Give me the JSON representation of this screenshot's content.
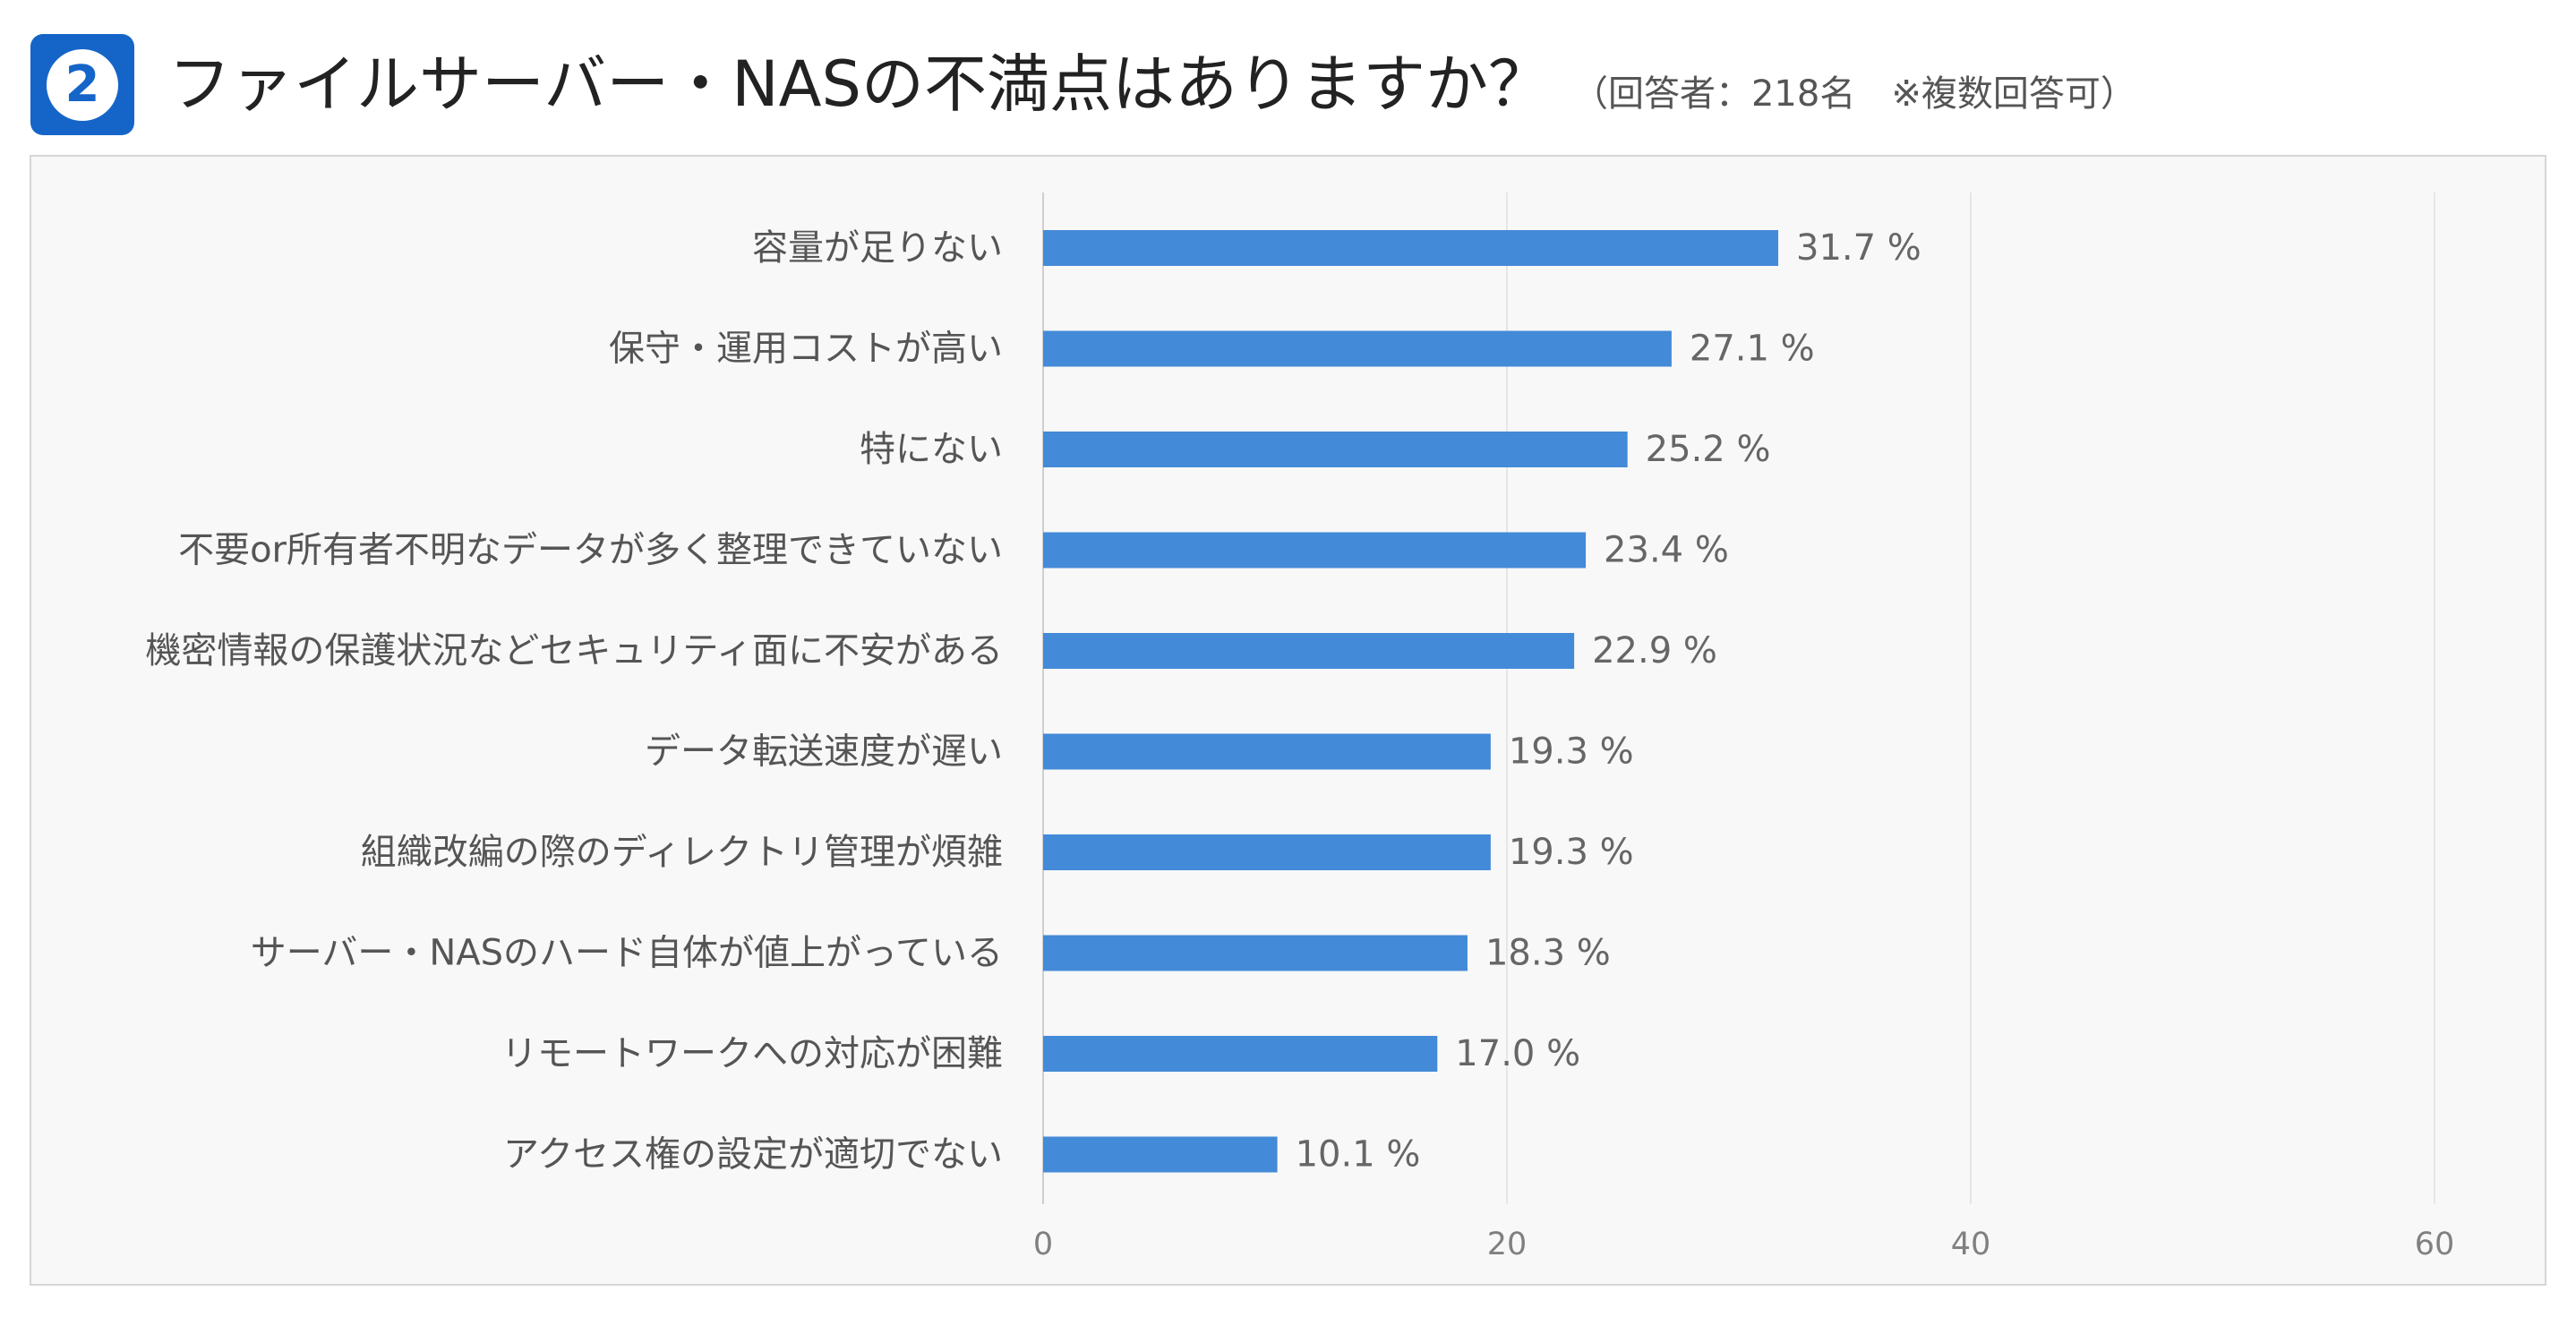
{
  "header": {
    "badge_number": "2",
    "title": "ファイルサーバー・NASの不満点はありますか？",
    "note": "（回答者：218名　※複数回答可）"
  },
  "colors": {
    "bar": "#438ad8",
    "badge": "#1565c8"
  },
  "chart_data": {
    "type": "bar",
    "orientation": "horizontal",
    "categories": [
      "容量が足りない",
      "保守・運用コストが高い",
      "特にない",
      "不要or所有者不明なデータが多く整理できていない",
      "機密情報の保護状況などセキュリティ面に不安がある",
      "データ転送速度が遅い",
      "組織改編の際のディレクトリ管理が煩雑",
      "サーバー・NASのハード自体が値上がっている",
      "リモートワークへの対応が困難",
      "アクセス権の設定が適切でない"
    ],
    "values": [
      31.7,
      27.1,
      25.2,
      23.4,
      22.9,
      19.3,
      19.3,
      18.3,
      17.0,
      10.1
    ],
    "value_labels": [
      "31.7 %",
      "27.1 %",
      "25.2 %",
      "23.4 %",
      "22.9 %",
      "19.3 %",
      "19.3 %",
      "18.3 %",
      "17.0 %",
      "10.1 %"
    ],
    "xlim": [
      0,
      60
    ],
    "xticks": [
      "0",
      "20",
      "40",
      "60"
    ],
    "grid": true,
    "title": "",
    "xlabel": "",
    "ylabel": ""
  }
}
